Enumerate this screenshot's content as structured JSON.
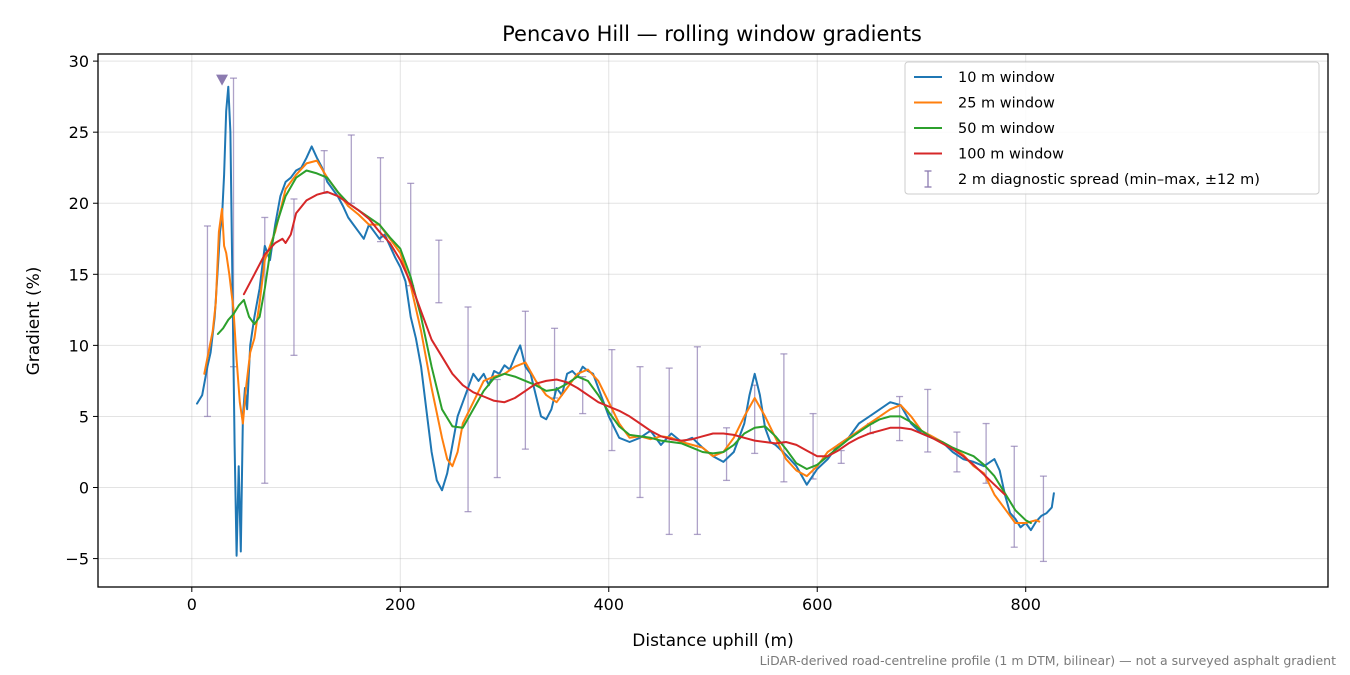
{
  "chart_data": {
    "type": "line",
    "title": "Pencavo Hill — rolling window gradients",
    "xlabel": "Distance uphill (m)",
    "ylabel": "Gradient (%)",
    "footnote": "LiDAR-derived road-centreline profile (1 m DTM, bilinear) — not a surveyed asphalt gradient",
    "xlim": [
      -90,
      1090
    ],
    "ylim": [
      -7,
      30.5
    ],
    "xticks": [
      0,
      200,
      400,
      600,
      800
    ],
    "yticks": [
      -5,
      0,
      5,
      10,
      15,
      20,
      25,
      30
    ],
    "grid": true,
    "legend_position": "top-right",
    "marker": {
      "label": "max",
      "x": 29,
      "y": 28.7,
      "color": "#8c7bb0"
    },
    "series": [
      {
        "name": "10 m window",
        "color": "#1f77b4",
        "x": [
          5,
          10,
          15,
          18,
          22,
          25,
          27,
          29,
          31,
          33,
          35,
          37,
          39,
          41,
          43,
          45,
          47,
          49,
          51,
          53,
          56,
          60,
          65,
          70,
          75,
          80,
          85,
          90,
          95,
          100,
          105,
          110,
          115,
          120,
          125,
          130,
          135,
          140,
          145,
          150,
          155,
          160,
          165,
          170,
          175,
          180,
          185,
          190,
          195,
          200,
          205,
          210,
          215,
          220,
          225,
          230,
          235,
          240,
          245,
          250,
          255,
          260,
          265,
          270,
          275,
          280,
          285,
          290,
          295,
          300,
          305,
          310,
          315,
          320,
          325,
          330,
          335,
          340,
          345,
          350,
          355,
          360,
          365,
          370,
          375,
          380,
          385,
          390,
          395,
          400,
          410,
          420,
          430,
          440,
          450,
          460,
          470,
          480,
          490,
          500,
          510,
          520,
          530,
          535,
          540,
          545,
          550,
          555,
          560,
          570,
          580,
          590,
          600,
          610,
          620,
          630,
          640,
          650,
          660,
          670,
          680,
          690,
          700,
          710,
          720,
          730,
          740,
          750,
          760,
          770,
          775,
          780,
          785,
          790,
          795,
          800,
          805,
          810,
          815,
          820,
          825,
          827
        ],
        "y": [
          5.9,
          6.5,
          8.5,
          9.5,
          12,
          15.5,
          18,
          19,
          22,
          26.5,
          28.2,
          25,
          14,
          3,
          -4.8,
          1.5,
          -4.5,
          5,
          7,
          5.5,
          10,
          12,
          14,
          17,
          16,
          18.5,
          20.5,
          21.5,
          21.8,
          22.3,
          22.5,
          23.2,
          24,
          23.2,
          22.5,
          21.5,
          21,
          20.5,
          19.8,
          19,
          18.5,
          18,
          17.5,
          18.5,
          18,
          17.5,
          17.8,
          17,
          16.2,
          15.5,
          14.5,
          12,
          10.5,
          8.5,
          5.5,
          2.5,
          0.5,
          -0.2,
          1,
          3,
          5,
          6,
          7,
          8,
          7.5,
          8,
          7.2,
          8.2,
          8,
          8.6,
          8.3,
          9.2,
          10,
          8.5,
          8,
          6.5,
          5,
          4.8,
          5.5,
          7,
          6.5,
          8,
          8.2,
          7.8,
          8.5,
          8.2,
          8,
          7,
          6,
          5,
          3.5,
          3.2,
          3.5,
          4,
          3,
          3.8,
          3.2,
          3.5,
          2.8,
          2.2,
          1.8,
          2.5,
          4.5,
          6.5,
          8,
          6.5,
          4.2,
          3.2,
          3,
          2.3,
          1.5,
          0.2,
          1.3,
          2,
          3,
          3.5,
          4.5,
          5,
          5.5,
          6,
          5.8,
          4.5,
          3.8,
          3.5,
          3.2,
          2.5,
          2,
          1.8,
          1.5,
          2,
          1.2,
          -0.5,
          -1.8,
          -2.2,
          -2.8,
          -2.5,
          -3,
          -2.4,
          -2,
          -1.8,
          -1.4,
          -0.4
        ]
      },
      {
        "name": "25 m window",
        "color": "#ff7f0e",
        "x": [
          12,
          16,
          20,
          23,
          26,
          29,
          31,
          33,
          36,
          40,
          43,
          46,
          49,
          52,
          56,
          60,
          65,
          70,
          75,
          80,
          90,
          100,
          110,
          120,
          130,
          140,
          150,
          160,
          170,
          180,
          190,
          200,
          210,
          220,
          230,
          240,
          245,
          250,
          255,
          260,
          270,
          280,
          290,
          300,
          310,
          320,
          330,
          340,
          350,
          360,
          370,
          380,
          390,
          400,
          410,
          420,
          430,
          440,
          450,
          460,
          470,
          480,
          490,
          500,
          510,
          520,
          530,
          540,
          550,
          560,
          570,
          580,
          590,
          600,
          610,
          620,
          630,
          640,
          650,
          660,
          670,
          680,
          690,
          700,
          710,
          720,
          730,
          740,
          750,
          760,
          770,
          780,
          790,
          800,
          810,
          813
        ],
        "y": [
          8,
          9.5,
          11,
          13,
          18,
          19.6,
          17,
          16.5,
          15,
          12.5,
          9,
          6,
          4.5,
          7,
          9.5,
          10.5,
          13,
          16,
          17,
          18,
          21,
          22,
          22.8,
          23,
          21.8,
          20.8,
          19.8,
          19.2,
          18.5,
          18.5,
          17.5,
          16.5,
          14.2,
          11,
          7,
          3.5,
          2,
          1.5,
          2.5,
          4.5,
          6,
          7.5,
          7.8,
          8,
          8.5,
          8.8,
          7.5,
          6.5,
          6,
          7,
          8,
          8.3,
          7.5,
          6,
          4.5,
          3.5,
          3.6,
          3.4,
          3.6,
          3.5,
          3.2,
          3,
          2.8,
          2.2,
          2.5,
          3.5,
          5,
          6.3,
          5,
          3.5,
          2,
          1.2,
          0.8,
          1.5,
          2.5,
          3,
          3.5,
          4,
          4.5,
          5,
          5.5,
          5.8,
          5,
          4,
          3.6,
          3.2,
          2.8,
          2.3,
          1.5,
          1,
          -0.5,
          -1.5,
          -2.5,
          -2.5,
          -2.3,
          -2.4
        ]
      },
      {
        "name": "50 m window",
        "color": "#2ca02c",
        "x": [
          25,
          30,
          35,
          40,
          45,
          50,
          55,
          60,
          65,
          70,
          75,
          80,
          90,
          100,
          110,
          120,
          130,
          140,
          150,
          160,
          170,
          180,
          190,
          200,
          210,
          220,
          230,
          240,
          250,
          260,
          270,
          280,
          290,
          300,
          310,
          320,
          330,
          340,
          350,
          360,
          370,
          380,
          390,
          400,
          410,
          420,
          430,
          440,
          450,
          460,
          470,
          480,
          490,
          500,
          510,
          520,
          530,
          540,
          550,
          560,
          570,
          580,
          590,
          600,
          610,
          620,
          630,
          640,
          650,
          660,
          670,
          680,
          690,
          700,
          710,
          720,
          730,
          740,
          750,
          760,
          770,
          780,
          790,
          800,
          805
        ],
        "y": [
          10.8,
          11.2,
          11.8,
          12.2,
          12.8,
          13.2,
          12,
          11.5,
          12,
          14,
          16.5,
          18.2,
          20.5,
          21.8,
          22.3,
          22.1,
          21.8,
          20.8,
          20,
          19.5,
          19,
          18.5,
          17.6,
          16.8,
          14.8,
          12,
          8.5,
          5.5,
          4.3,
          4.2,
          5.5,
          6.8,
          7.7,
          8,
          7.8,
          7.5,
          7.2,
          6.8,
          6.9,
          7.3,
          7.8,
          7.5,
          6.5,
          5.3,
          4.3,
          3.7,
          3.6,
          3.5,
          3.3,
          3.2,
          3.1,
          2.8,
          2.5,
          2.4,
          2.5,
          3,
          3.8,
          4.2,
          4.3,
          3.6,
          2.7,
          1.7,
          1.3,
          1.6,
          2.2,
          2.8,
          3.4,
          3.9,
          4.4,
          4.8,
          5,
          5,
          4.6,
          4,
          3.5,
          3.2,
          2.8,
          2.5,
          2.2,
          1.6,
          0.8,
          -0.4,
          -1.6,
          -2.3,
          -2.5
        ]
      },
      {
        "name": "100 m window",
        "color": "#d62728",
        "x": [
          50,
          60,
          70,
          80,
          87,
          90,
          95,
          100,
          110,
          120,
          130,
          140,
          150,
          160,
          170,
          180,
          190,
          200,
          210,
          220,
          230,
          240,
          250,
          260,
          270,
          280,
          290,
          300,
          310,
          320,
          330,
          340,
          350,
          360,
          370,
          380,
          390,
          400,
          410,
          420,
          430,
          440,
          450,
          460,
          470,
          480,
          490,
          500,
          510,
          520,
          530,
          540,
          550,
          560,
          570,
          580,
          590,
          600,
          610,
          620,
          630,
          640,
          650,
          660,
          670,
          680,
          690,
          700,
          710,
          720,
          730,
          740,
          750,
          760,
          770,
          780
        ],
        "y": [
          13.6,
          15,
          16.4,
          17.2,
          17.5,
          17.2,
          17.8,
          19.3,
          20.2,
          20.6,
          20.8,
          20.5,
          20,
          19.5,
          18.9,
          18,
          17.2,
          16,
          14.4,
          12.4,
          10.4,
          9.2,
          8,
          7.2,
          6.7,
          6.4,
          6.1,
          6,
          6.3,
          6.8,
          7.3,
          7.5,
          7.6,
          7.4,
          7,
          6.5,
          6,
          5.7,
          5.4,
          5,
          4.5,
          4,
          3.6,
          3.4,
          3.3,
          3.4,
          3.6,
          3.8,
          3.8,
          3.7,
          3.5,
          3.3,
          3.2,
          3.1,
          3.2,
          3,
          2.6,
          2.2,
          2.2,
          2.6,
          3.1,
          3.5,
          3.8,
          4,
          4.2,
          4.2,
          4.1,
          3.8,
          3.5,
          3.1,
          2.7,
          2.2,
          1.6,
          0.9,
          0.2,
          -0.5
        ]
      }
    ],
    "errorbars": {
      "name": "2 m diagnostic spread (min–max, ±12 m)",
      "color": "#8c7bb0",
      "x": [
        15,
        40,
        70,
        98,
        127,
        153,
        181,
        210,
        237,
        265,
        293,
        320,
        348,
        375,
        403,
        430,
        458,
        485,
        513,
        540,
        568,
        596,
        623,
        651,
        679,
        706,
        734,
        762,
        789,
        817
      ],
      "low": [
        5,
        8.5,
        0.3,
        9.3,
        20.7,
        20,
        17.3,
        14.2,
        13,
        -1.7,
        0.7,
        2.7,
        6.3,
        5.2,
        2.6,
        -0.7,
        -3.3,
        -3.3,
        0.5,
        2.4,
        0.4,
        0.6,
        1.7,
        3.8,
        3.3,
        2.5,
        1.1,
        0.3,
        -4.2,
        -5.2
      ],
      "high": [
        18.4,
        28.8,
        19,
        20.3,
        23.7,
        24.8,
        23.2,
        21.4,
        17.4,
        12.7,
        7.6,
        12.4,
        11.2,
        7.8,
        9.7,
        8.5,
        8.4,
        9.9,
        4.2,
        7.2,
        9.4,
        5.2,
        2.6,
        4.5,
        6.4,
        6.9,
        3.9,
        4.5,
        2.9,
        0.8
      ]
    },
    "legend": [
      {
        "label": "10 m window",
        "kind": "line",
        "color": "#1f77b4"
      },
      {
        "label": "25 m window",
        "kind": "line",
        "color": "#ff7f0e"
      },
      {
        "label": "50 m window",
        "kind": "line",
        "color": "#2ca02c"
      },
      {
        "label": "100 m window",
        "kind": "line",
        "color": "#d62728"
      },
      {
        "label": "2 m diagnostic spread (min–max, ±12 m)",
        "kind": "errorbar",
        "color": "#8c7bb0"
      }
    ]
  }
}
